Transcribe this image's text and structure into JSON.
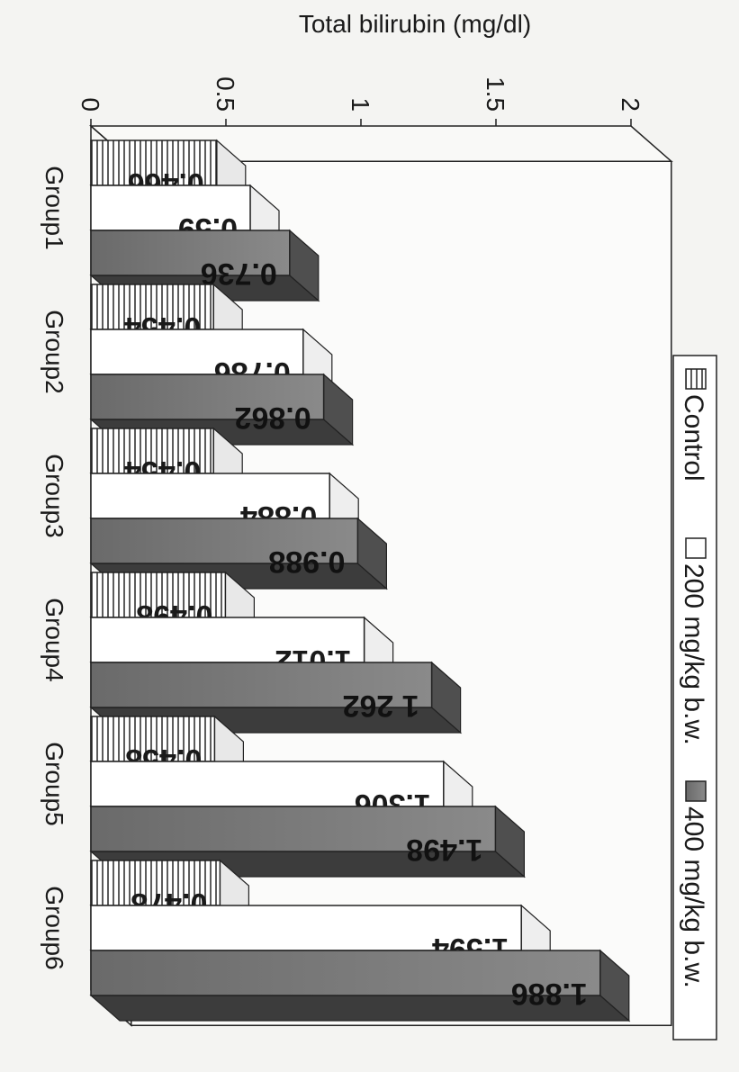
{
  "chart_data": {
    "type": "bar",
    "title": "",
    "xlabel": "",
    "ylabel": "Total bilirubin (mg/dl)",
    "ylim": [
      0,
      2
    ],
    "yticks": [
      "0",
      "0.5",
      "1",
      "1.5",
      "2"
    ],
    "categories": [
      "Group1",
      "Group2",
      "Group3",
      "Group4",
      "Group5",
      "Group6"
    ],
    "series": [
      {
        "name": "Control",
        "values": [
          0.466,
          0.454,
          0.454,
          0.498,
          0.458,
          0.478
        ],
        "labels": [
          "0.466",
          "0.454",
          "0.454",
          "0.498",
          "0.458",
          "0.478"
        ],
        "fill": "#ffffff",
        "pattern": "striped"
      },
      {
        "name": "200 mg/kg b.w.",
        "values": [
          0.59,
          0.786,
          0.884,
          1.012,
          1.306,
          1.594
        ],
        "labels": [
          "0.59",
          "0.786",
          "0.884",
          "1.012",
          "1.306",
          "1.594"
        ],
        "fill": "#ffffff",
        "pattern": "plain"
      },
      {
        "name": "400 mg/kg b.w.",
        "values": [
          0.736,
          0.862,
          0.988,
          1.262,
          1.498,
          1.886
        ],
        "labels": [
          "0.736",
          "0.862",
          "0.988",
          "1 262",
          "1.498",
          "1.886"
        ],
        "fill": "#7a7a7a",
        "pattern": "plain"
      }
    ],
    "legend_position": "top",
    "grid": false,
    "style": "3d"
  }
}
